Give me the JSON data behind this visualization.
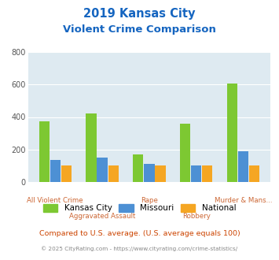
{
  "title_line1": "2019 Kansas City",
  "title_line2": "Violent Crime Comparison",
  "categories": [
    "All Violent Crime",
    "Aggravated Assault",
    "Rape",
    "Robbery",
    "Murder & Mans..."
  ],
  "kc_values": [
    375,
    420,
    168,
    358,
    605
  ],
  "mo_values": [
    135,
    148,
    110,
    100,
    188
  ],
  "nat_values": [
    100,
    100,
    100,
    100,
    100
  ],
  "kc_color": "#7dc832",
  "mo_color": "#4d90d4",
  "nat_color": "#f5a623",
  "bg_color": "#deeaf1",
  "title_color": "#1565c0",
  "label_color": "#cc6633",
  "ylim": [
    0,
    800
  ],
  "yticks": [
    0,
    200,
    400,
    600,
    800
  ],
  "legend_labels": [
    "Kansas City",
    "Missouri",
    "National"
  ],
  "footnote1": "Compared to U.S. average. (U.S. average equals 100)",
  "footnote2": "© 2025 CityRating.com - https://www.cityrating.com/crime-statistics/",
  "footnote1_color": "#cc4400",
  "footnote2_color": "#888888"
}
